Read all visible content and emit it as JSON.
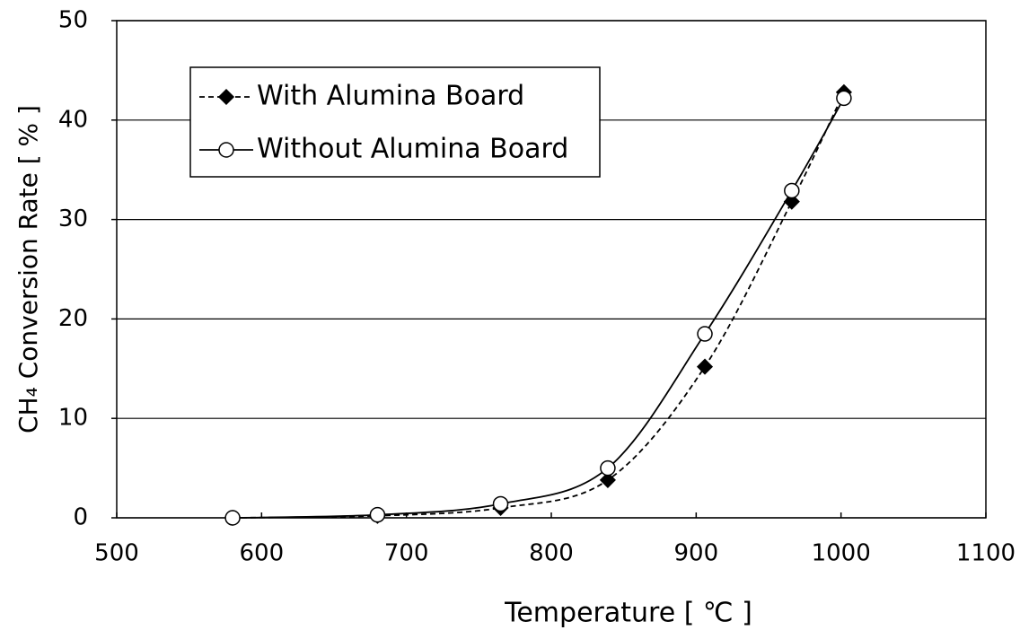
{
  "chart_data": {
    "type": "line",
    "xlabel": "Temperature [ ℃ ]",
    "ylabel": "CH₄ Conversion Rate [ % ]",
    "x": [
      580,
      680,
      765,
      839,
      906,
      966,
      1002
    ],
    "series": [
      {
        "name": "With Alumina Board",
        "color": "#000000",
        "line_style": "dashed",
        "marker": "diamond",
        "marker_fill": "#000000",
        "values": [
          0,
          0.2,
          1.0,
          3.8,
          15.2,
          31.8,
          42.8
        ]
      },
      {
        "name": "Without Alumina Board",
        "color": "#000000",
        "line_style": "solid",
        "marker": "circle",
        "marker_fill": "#ffffff",
        "values": [
          0,
          0.3,
          1.4,
          5.0,
          18.5,
          32.9,
          42.2
        ]
      }
    ],
    "xlim": [
      500,
      1100
    ],
    "xticks": [
      500,
      600,
      700,
      800,
      900,
      1000,
      1100
    ],
    "ylim": [
      0,
      50
    ],
    "yticks": [
      0,
      10,
      20,
      30,
      40,
      50
    ],
    "grid": true,
    "legend": "upper left",
    "smooth": true
  }
}
